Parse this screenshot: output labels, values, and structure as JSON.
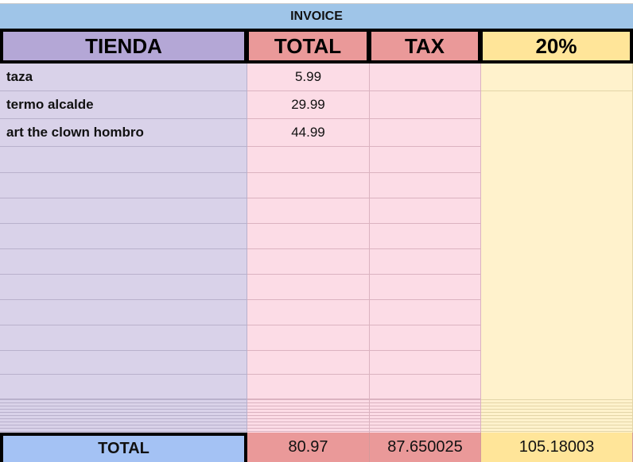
{
  "title": "INVOICE",
  "headers": [
    "TIENDA",
    "TOTAL",
    "TAX",
    "20%"
  ],
  "rows": [
    {
      "tienda": "taza",
      "total": "5.99"
    },
    {
      "tienda": "termo alcalde",
      "total": "29.99"
    },
    {
      "tienda": "art the clown hombro",
      "total": "44.99"
    }
  ],
  "totals": {
    "label": "TOTAL",
    "total": "80.97",
    "tax": "87.650025",
    "pct": "105.18003"
  },
  "colors": {
    "invoice_bg": "#9fc5e8",
    "tienda_header": "#b4a7d6",
    "tienda_body": "#d9d2e9",
    "total_header": "#ea9999",
    "total_body": "#fcdce6",
    "pct_header": "#ffe599",
    "pct_body": "#fff2cc",
    "total_label_bg": "#a4c2f4"
  }
}
